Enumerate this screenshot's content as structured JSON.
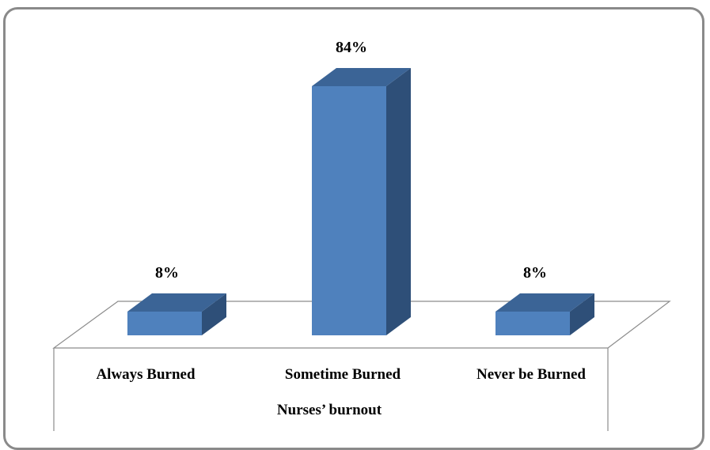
{
  "chart_data": {
    "type": "bar",
    "categories": [
      "Always Burned",
      "Sometime Burned",
      "Never be Burned"
    ],
    "values": [
      8,
      84,
      8
    ],
    "data_labels": [
      "8%",
      "84%",
      "8%"
    ],
    "title": "",
    "xlabel": "Nurses’ burnout",
    "ylabel": "",
    "ylim": [
      0,
      90
    ],
    "grid": false,
    "legend": "none",
    "bar_style": "3d",
    "colors": {
      "front": "#4f81bd",
      "top": "#3b6496",
      "side": "#2e4f78"
    }
  }
}
